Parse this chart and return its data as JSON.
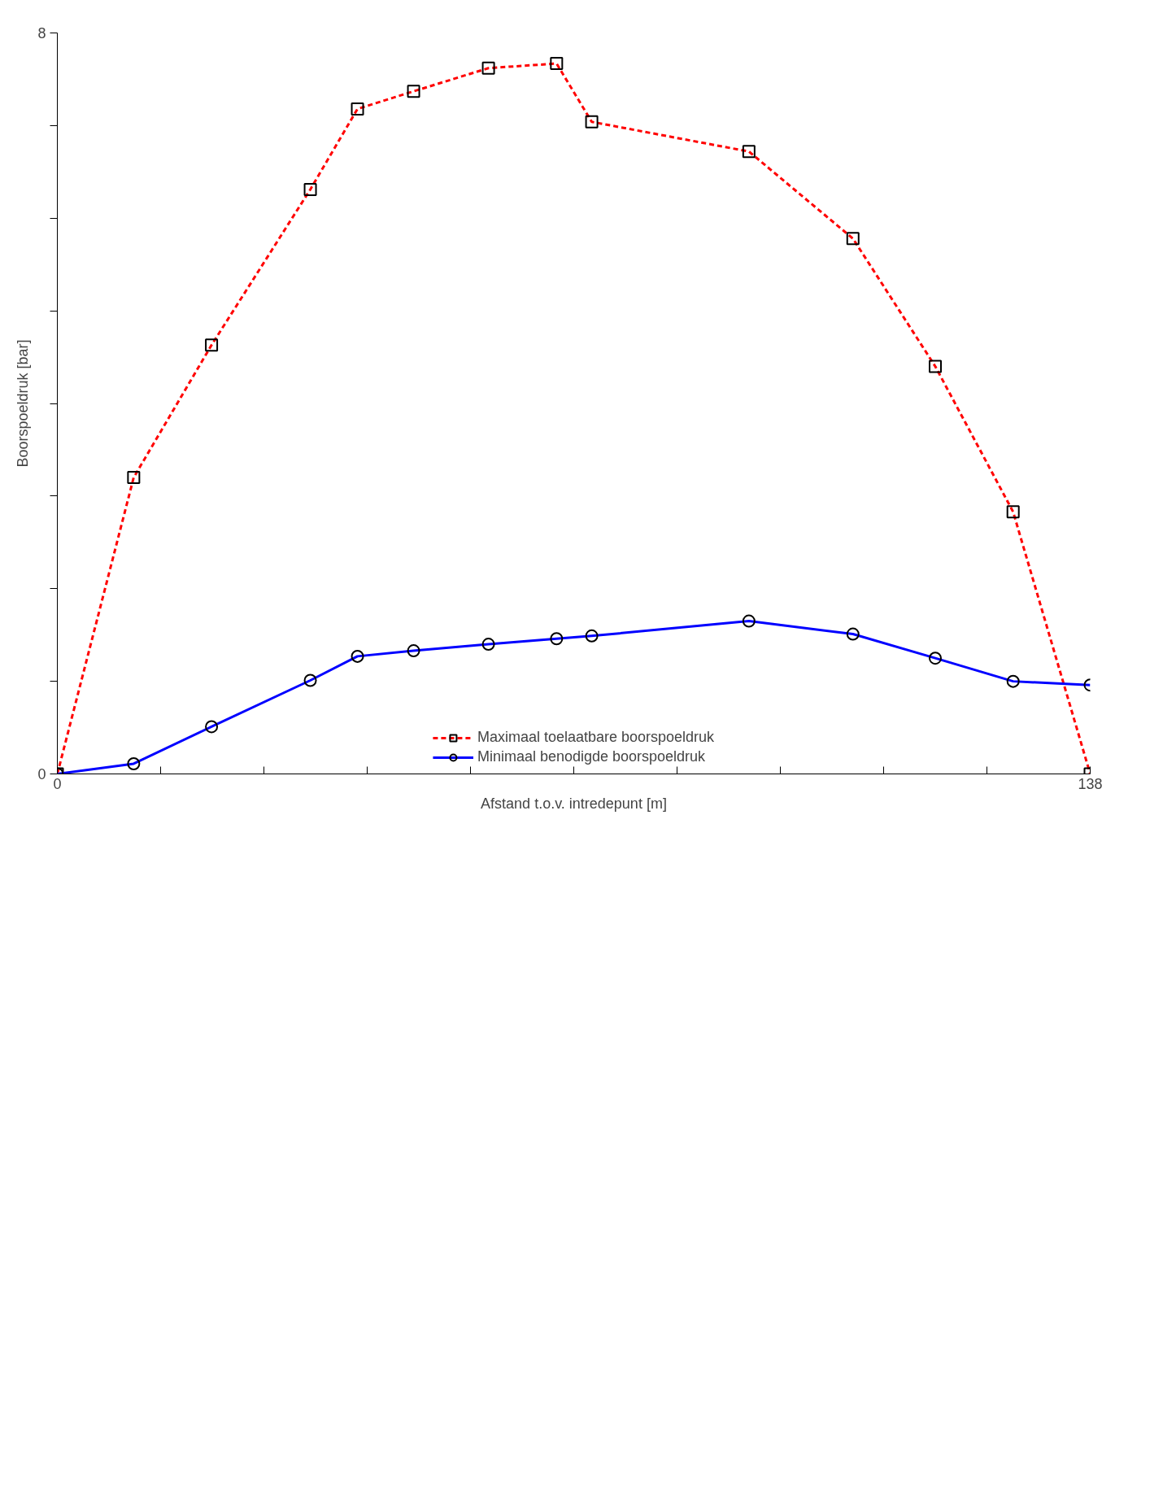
{
  "chart_data": {
    "type": "line",
    "xlabel": "Afstand t.o.v. intredepunt [m]",
    "ylabel": "Boorspoeldruk [bar]",
    "x": [
      0,
      10.2,
      20.6,
      33.8,
      40.1,
      47.6,
      57.6,
      66.7,
      71.4,
      92.4,
      106.3,
      117.3,
      127.7,
      138
    ],
    "series": [
      {
        "name": "Maximaal toelaatbare boorspoeldruk",
        "color": "#ff0000",
        "marker": "square",
        "line_style": "dashed",
        "values": [
          0,
          3.2,
          4.63,
          6.31,
          7.18,
          7.37,
          7.62,
          7.67,
          7.04,
          6.72,
          5.78,
          4.4,
          2.83,
          0
        ]
      },
      {
        "name": "Minimaal benodigde boorspoeldruk",
        "color": "#0000ff",
        "marker": "circle",
        "line_style": "solid",
        "values": [
          0,
          0.11,
          0.51,
          1.01,
          1.27,
          1.33,
          1.4,
          1.46,
          1.49,
          1.65,
          1.51,
          1.25,
          1.0,
          0.96
        ]
      }
    ],
    "xlim": [
      0,
      138
    ],
    "ylim": [
      0,
      8
    ],
    "xticks": [
      0,
      {
        "value": 13.8,
        "label": null
      },
      {
        "value": 27.6,
        "label": null
      },
      {
        "value": 41.4,
        "label": null
      },
      {
        "value": 55.2,
        "label": null
      },
      {
        "value": 69,
        "label": null
      },
      {
        "value": 82.8,
        "label": null
      },
      {
        "value": 96.6,
        "label": null
      },
      {
        "value": 110.4,
        "label": null
      },
      {
        "value": 124.2,
        "label": null
      },
      138
    ],
    "yticks": [
      0,
      {
        "value": 1,
        "label": null
      },
      {
        "value": 2,
        "label": null
      },
      {
        "value": 3,
        "label": null
      },
      {
        "value": 4,
        "label": null
      },
      {
        "value": 5,
        "label": null
      },
      {
        "value": 6,
        "label": null
      },
      {
        "value": 7,
        "label": null
      },
      8
    ],
    "grid": false,
    "legend": "bottom"
  }
}
